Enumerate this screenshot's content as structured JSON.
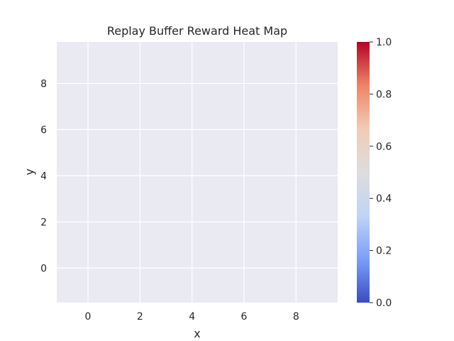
{
  "chart_data": {
    "type": "heatmap",
    "title": "Replay Buffer Reward Heat Map",
    "xlabel": "x",
    "ylabel": "y",
    "xlim": [
      -1.2,
      9.6
    ],
    "ylim": [
      -1.5,
      9.8
    ],
    "x_ticks": [
      0,
      2,
      4,
      6,
      8
    ],
    "y_ticks": [
      0,
      2,
      4,
      6,
      8
    ],
    "grid": true,
    "points": [],
    "colorbar": {
      "colormap": "coolwarm",
      "range": [
        0.0,
        1.0
      ],
      "ticks": [
        "0.0",
        "0.2",
        "0.4",
        "0.6",
        "0.8",
        "1.0"
      ],
      "stops": [
        "#3b4cc0",
        "#7b9ff9",
        "#c0d4f5",
        "#dddddd",
        "#f2cbb7",
        "#ee8468",
        "#b40426"
      ]
    },
    "colors": {
      "plot_background": "#eaeaf2",
      "grid": "#ffffff",
      "text": "#262626"
    }
  }
}
